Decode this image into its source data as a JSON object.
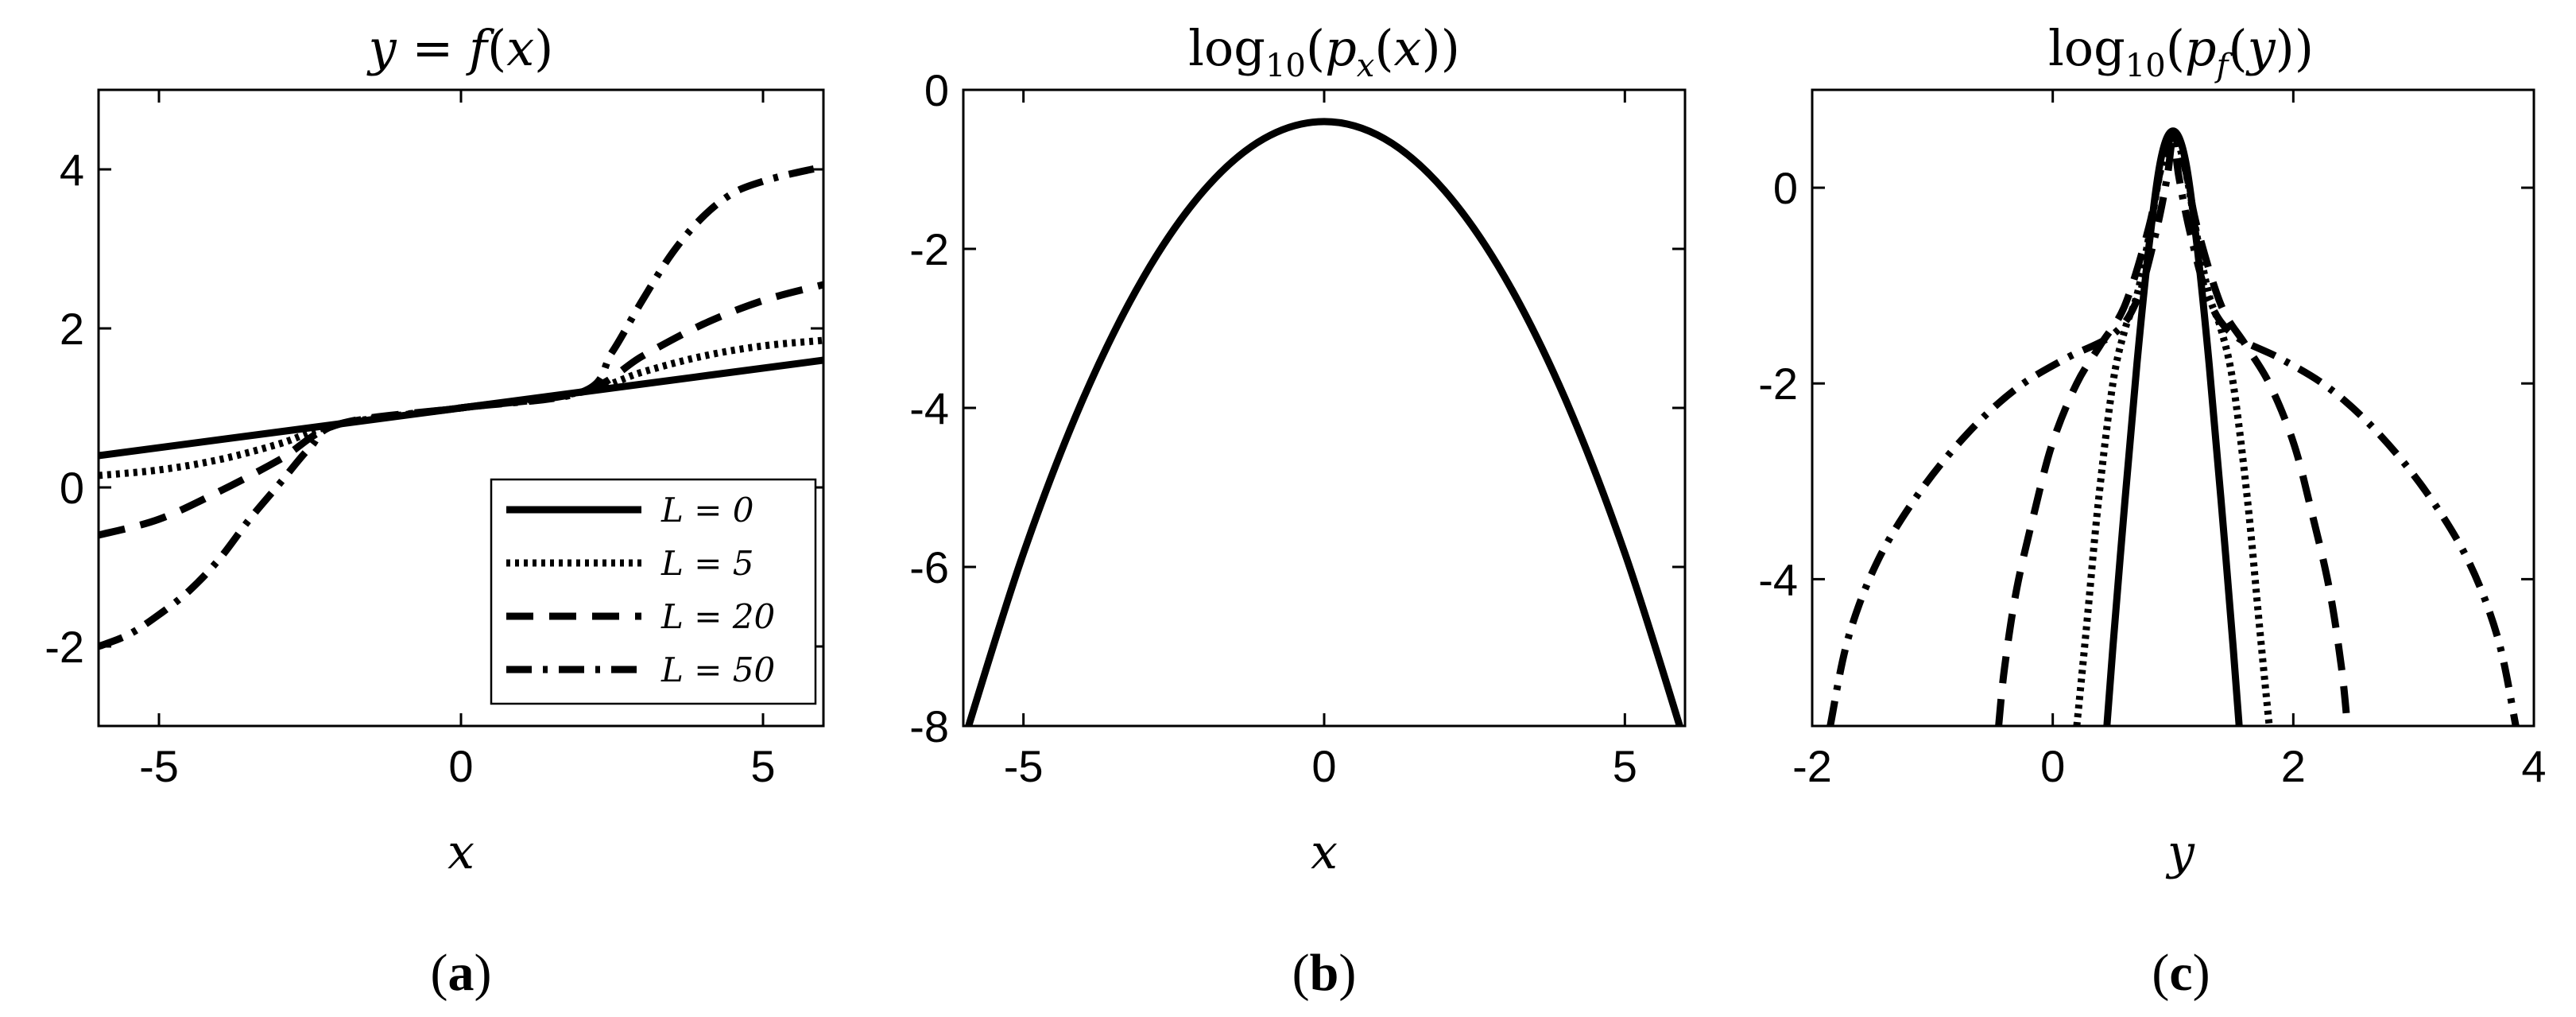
{
  "line_styles": {
    "solid": "",
    "dotted": "5 6",
    "dashed": "34 20",
    "dashdot": "32 14 6 14"
  },
  "chart_data": [
    {
      "id": "a",
      "type": "line",
      "title": "y = f(x)",
      "xlabel": "x",
      "ylabel": "",
      "panel_label": "(a)",
      "xlim": [
        -6,
        6
      ],
      "ylim": [
        -3,
        5
      ],
      "xticks": [
        -5,
        0,
        5
      ],
      "yticks": [
        -2,
        0,
        2,
        4
      ],
      "xtick_labels": [
        "-5",
        "0",
        "5"
      ],
      "ytick_labels": [
        "-2",
        "0",
        "2",
        "4"
      ],
      "grid": false,
      "legend": "bottom-right",
      "series": [
        {
          "name": "L = 0",
          "style": "solid",
          "x": [
            -6,
            -2,
            0,
            2,
            6
          ],
          "y": [
            0.4,
            0.8,
            1.0,
            1.2,
            1.6
          ]
        },
        {
          "name": "L = 5",
          "style": "dotted",
          "x": [
            -6,
            -5,
            -4,
            -3,
            -2,
            0,
            2,
            3,
            4,
            5,
            6
          ],
          "y": [
            0.15,
            0.22,
            0.35,
            0.55,
            0.8,
            1.0,
            1.2,
            1.45,
            1.65,
            1.78,
            1.85
          ]
        },
        {
          "name": "L = 20",
          "style": "dashed",
          "x": [
            -6,
            -5,
            -4,
            -3,
            -2,
            0,
            2,
            3,
            4,
            5,
            6
          ],
          "y": [
            -0.6,
            -0.4,
            -0.05,
            0.35,
            0.8,
            1.0,
            1.2,
            1.65,
            2.05,
            2.35,
            2.55
          ]
        },
        {
          "name": "L = 50",
          "style": "dashdot",
          "x": [
            -6,
            -5.5,
            -5,
            -4.5,
            -4,
            -3.5,
            -3,
            -2.5,
            -2,
            0,
            2,
            2.5,
            3,
            3.5,
            4,
            4.5,
            5,
            5.5,
            6
          ],
          "y": [
            -2.0,
            -1.85,
            -1.6,
            -1.3,
            -0.9,
            -0.4,
            0.05,
            0.5,
            0.8,
            1.0,
            1.2,
            1.7,
            2.35,
            2.95,
            3.4,
            3.7,
            3.85,
            3.95,
            4.03
          ]
        }
      ]
    },
    {
      "id": "b",
      "type": "line",
      "title": "log10(px(x))",
      "xlabel": "x",
      "ylabel": "",
      "panel_label": "(b)",
      "xlim": [
        -6,
        6
      ],
      "ylim": [
        -8,
        0
      ],
      "xticks": [
        -5,
        0,
        5
      ],
      "yticks": [
        -8,
        -6,
        -4,
        -2,
        0
      ],
      "xtick_labels": [
        "-5",
        "0",
        "5"
      ],
      "ytick_labels": [
        "-8",
        "-6",
        "-4",
        "-2",
        "0"
      ],
      "grid": false,
      "series": [
        {
          "style": "solid",
          "x": [
            -6,
            -5,
            -4,
            -3,
            -2,
            -1,
            0,
            1,
            2,
            3,
            4,
            5,
            6
          ],
          "y": [
            -8.215,
            -5.827,
            -3.872,
            -2.352,
            -1.266,
            -0.614,
            -0.399,
            -0.614,
            -1.266,
            -2.352,
            -3.872,
            -5.827,
            -8.215
          ]
        }
      ]
    },
    {
      "id": "c",
      "type": "line",
      "title": "log10(pf(y))",
      "xlabel": "y",
      "ylabel": "",
      "panel_label": "(c)",
      "xlim": [
        -2,
        4
      ],
      "ylim": [
        -5.5,
        1
      ],
      "xticks": [
        -2,
        0,
        2,
        4
      ],
      "yticks": [
        -4,
        -2,
        0
      ],
      "xtick_labels": [
        "-2",
        "0",
        "2",
        "4"
      ],
      "ytick_labels": [
        "-4",
        "-2",
        "0"
      ],
      "grid": false,
      "series": [
        {
          "name": "L = 0",
          "style": "solid",
          "x": [
            0.45,
            0.5,
            0.6,
            0.7,
            0.8,
            0.9,
            1.0,
            1.1,
            1.2,
            1.3,
            1.4,
            1.5,
            1.55
          ],
          "y": [
            -5.5,
            -4.7,
            -3.2,
            -1.8,
            -0.6,
            0.3,
            0.58,
            0.3,
            -0.6,
            -1.8,
            -3.2,
            -4.7,
            -5.5
          ]
        },
        {
          "name": "L = 5",
          "style": "dotted",
          "x": [
            0.2,
            0.28,
            0.38,
            0.5,
            0.6,
            0.7,
            0.8,
            0.9,
            1.0,
            1.1,
            1.2,
            1.3,
            1.4,
            1.5,
            1.62,
            1.72,
            1.8
          ],
          "y": [
            -5.5,
            -4.5,
            -3.2,
            -2.0,
            -1.45,
            -1.1,
            -0.5,
            0.2,
            0.55,
            0.2,
            -0.5,
            -1.1,
            -1.45,
            -2.0,
            -3.2,
            -4.5,
            -5.5
          ]
        },
        {
          "name": "L = 20",
          "style": "dashed",
          "x": [
            -0.45,
            -0.4,
            -0.3,
            -0.15,
            0.0,
            0.2,
            0.4,
            0.6,
            0.8,
            0.9,
            1.0,
            1.1,
            1.2,
            1.4,
            1.6,
            1.8,
            2.0,
            2.15,
            2.3,
            2.4,
            2.45
          ],
          "y": [
            -5.5,
            -4.9,
            -4.1,
            -3.3,
            -2.6,
            -2.0,
            -1.6,
            -1.2,
            -0.4,
            0.2,
            0.52,
            0.2,
            -0.4,
            -1.2,
            -1.6,
            -2.0,
            -2.6,
            -3.3,
            -4.1,
            -4.9,
            -5.5
          ]
        },
        {
          "name": "L = 50",
          "style": "dashdot",
          "x": [
            -1.85,
            -1.7,
            -1.45,
            -1.1,
            -0.7,
            -0.3,
            0.1,
            0.5,
            0.7,
            0.85,
            0.95,
            1.0,
            1.05,
            1.15,
            1.3,
            1.5,
            1.9,
            2.3,
            2.7,
            3.1,
            3.45,
            3.7,
            3.85
          ],
          "y": [
            -5.5,
            -4.6,
            -3.8,
            -3.1,
            -2.5,
            -2.05,
            -1.75,
            -1.5,
            -1.15,
            -0.5,
            0.1,
            0.5,
            0.1,
            -0.5,
            -1.15,
            -1.5,
            -1.75,
            -2.05,
            -2.5,
            -3.1,
            -3.8,
            -4.6,
            -5.5
          ]
        }
      ]
    }
  ]
}
